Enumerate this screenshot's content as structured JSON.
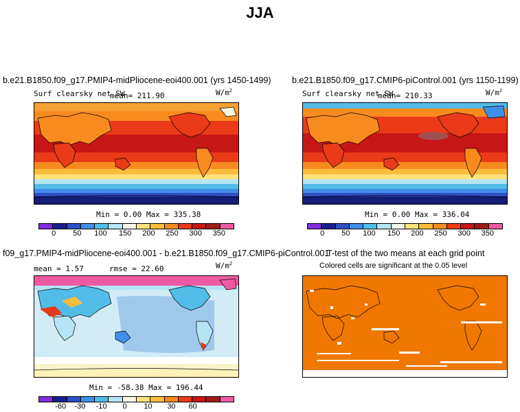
{
  "title": "JJA",
  "panels": {
    "top_left": {
      "title": "b.e21.B1850.f09_g17.PMIP4-midPliocene-eoi400.001 (yrs 1450-1499)",
      "variable": "Surf clearsky net SW",
      "mean": "mean= 211.90",
      "units": "W/m",
      "units_sup": "2",
      "min_max": "Min =    0.00 Max = 335.38"
    },
    "top_right": {
      "title": "b.e21.B1850.f09_g17.CMIP6-piControl.001 (yrs 1150-1199)",
      "variable": "Surf clearsky net SW",
      "mean": "mean= 210.33",
      "units": "W/m",
      "units_sup": "2",
      "min_max": "Min =    0.00 Max = 336.04"
    },
    "bottom_left": {
      "title": "f09_g17.PMIP4-midPliocene-eoi400.001 - b.e21.B1850.f09_g17.CMIP6-piControl.001",
      "mean": "mean =    1.57",
      "rmse": "rmse =   22.60",
      "units": "W/m",
      "units_sup": "2",
      "min_max": "Min = -58.38 Max = 196.44"
    },
    "bottom_right": {
      "title": "T-test of the two means at each grid point",
      "subtitle": "Colored cells are significant at the 0.05 level"
    }
  },
  "colorbars": {
    "absolute": {
      "colors": [
        "#7f2ee0",
        "#1a1f8f",
        "#2f4fc4",
        "#3f8ee8",
        "#52bce8",
        "#b5e4f4",
        "#f7f7e9",
        "#ffe37a",
        "#fdbd3c",
        "#f88b1e",
        "#ea3a18",
        "#c71616",
        "#9f1b1b",
        "#f05aa2"
      ],
      "labels": [
        "0",
        "50",
        "100",
        "150",
        "200",
        "250",
        "300",
        "350"
      ]
    },
    "difference": {
      "colors": [
        "#7f2ee0",
        "#1a1f8f",
        "#2f4fc4",
        "#3f8ee8",
        "#52bce8",
        "#b5e4f4",
        "#f7f7e9",
        "#ffe37a",
        "#fdbd3c",
        "#f88b1e",
        "#ea3a18",
        "#c71616",
        "#9f1b1b",
        "#f05aa2"
      ],
      "labels": [
        "-60",
        "-30",
        "-10",
        "0",
        "10",
        "30",
        "60"
      ]
    }
  },
  "map_colors": {
    "orange": "#f27600",
    "red": "#e8381a",
    "darkred": "#c8161a",
    "yellow": "#ffe37a",
    "lightyellow": "#fdd14a",
    "blue": "#3c8fe6",
    "darkblue": "#1b2690",
    "navy": "#141c78",
    "paleblue": "#bde4f5",
    "midblue": "#9ec9ec",
    "pink": "#f060b0",
    "ttest": "#f07800"
  }
}
